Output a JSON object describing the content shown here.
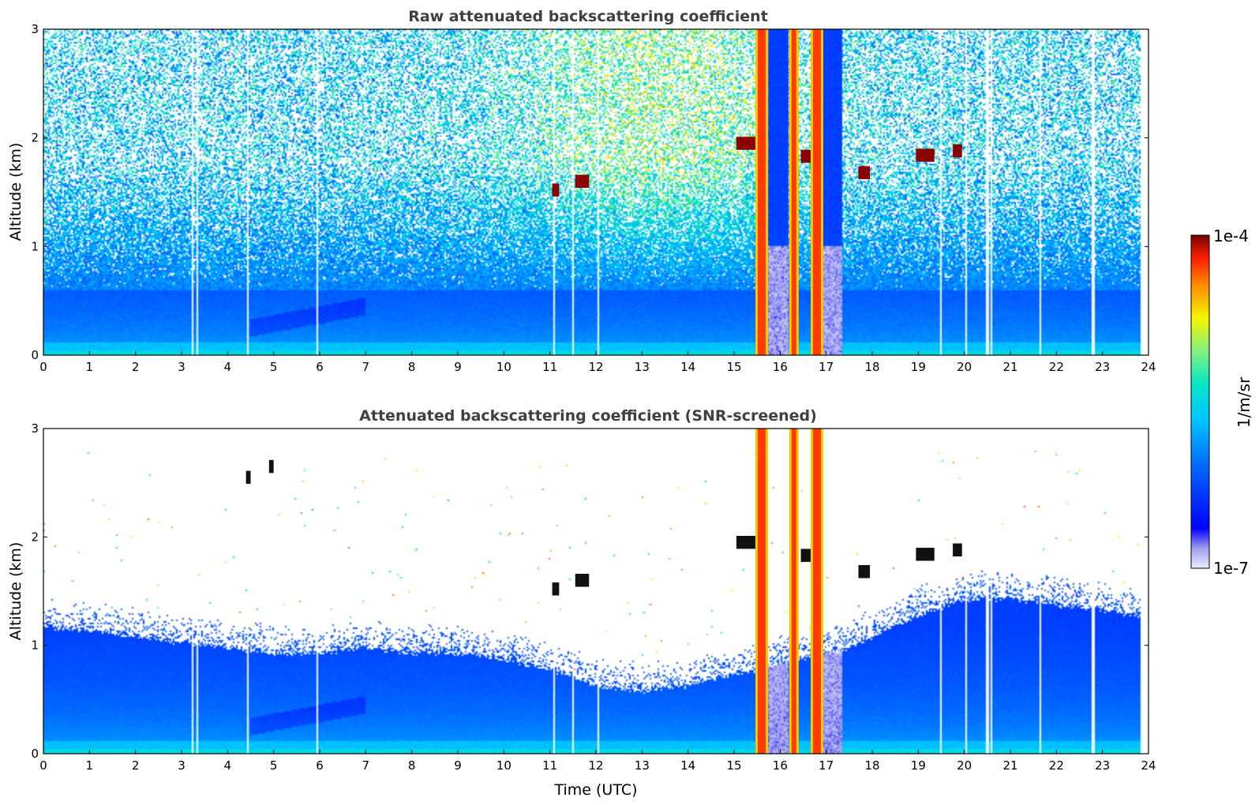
{
  "chart_data": [
    {
      "type": "heatmap",
      "title": "Raw attenuated backscattering coefficient",
      "xlabel": "",
      "ylabel": "Altitude (km)",
      "xlim": [
        0,
        24
      ],
      "ylim": [
        0,
        3
      ],
      "xticks": [
        "0",
        "1",
        "2",
        "3",
        "4",
        "5",
        "6",
        "7",
        "8",
        "9",
        "10",
        "11",
        "12",
        "13",
        "14",
        "15",
        "16",
        "17",
        "18",
        "19",
        "20",
        "21",
        "22",
        "23",
        "24"
      ],
      "yticks": [
        "0",
        "1",
        "2",
        "3"
      ],
      "cloud_layers": [
        {
          "t_start": 11.05,
          "t_end": 11.2,
          "alt_km": 1.52
        },
        {
          "t_start": 11.55,
          "t_end": 11.85,
          "alt_km": 1.6
        },
        {
          "t_start": 15.05,
          "t_end": 15.55,
          "alt_km": 1.95
        },
        {
          "t_start": 16.45,
          "t_end": 16.75,
          "alt_km": 1.83
        },
        {
          "t_start": 17.7,
          "t_end": 17.95,
          "alt_km": 1.68
        },
        {
          "t_start": 18.95,
          "t_end": 19.35,
          "alt_km": 1.84
        },
        {
          "t_start": 19.75,
          "t_end": 19.95,
          "alt_km": 1.88
        }
      ],
      "precipitation_columns": [
        15.6,
        16.3,
        16.8
      ],
      "low_signal_gaps": [
        {
          "t_start": 15.75,
          "t_end": 16.2
        },
        {
          "t_start": 16.9,
          "t_end": 17.35
        }
      ]
    },
    {
      "type": "heatmap",
      "title": "Attenuated backscattering coefficient (SNR-screened)",
      "xlabel": "Time (UTC)",
      "ylabel": "Altitude (km)",
      "xlim": [
        0,
        24
      ],
      "ylim": [
        0,
        3
      ],
      "xticks": [
        "0",
        "1",
        "2",
        "3",
        "4",
        "5",
        "6",
        "7",
        "8",
        "9",
        "10",
        "11",
        "12",
        "13",
        "14",
        "15",
        "16",
        "17",
        "18",
        "19",
        "20",
        "21",
        "22",
        "23",
        "24"
      ],
      "yticks": [
        "0",
        "1",
        "2",
        "3"
      ],
      "snr_boundary": {
        "t": [
          0,
          1,
          2,
          3,
          4,
          5,
          6,
          7,
          8,
          9,
          10,
          11,
          12,
          13,
          14,
          15,
          15.5,
          17.5,
          18,
          19,
          20,
          21,
          22,
          23,
          23.8
        ],
        "alt_km": [
          1.2,
          1.15,
          1.1,
          1.05,
          1.0,
          0.95,
          0.95,
          1.0,
          0.95,
          0.95,
          0.9,
          0.8,
          0.65,
          0.6,
          0.65,
          0.75,
          0.8,
          1.0,
          1.1,
          1.3,
          1.45,
          1.45,
          1.4,
          1.35,
          1.3
        ]
      },
      "cloud_layers": [
        {
          "t_start": 4.4,
          "t_end": 4.5,
          "alt_km": 2.55
        },
        {
          "t_start": 4.9,
          "t_end": 5.0,
          "alt_km": 2.65
        },
        {
          "t_start": 11.05,
          "t_end": 11.2,
          "alt_km": 1.52
        },
        {
          "t_start": 11.55,
          "t_end": 11.85,
          "alt_km": 1.6
        },
        {
          "t_start": 15.05,
          "t_end": 15.55,
          "alt_km": 1.95
        },
        {
          "t_start": 16.45,
          "t_end": 16.75,
          "alt_km": 1.83
        },
        {
          "t_start": 17.7,
          "t_end": 17.95,
          "alt_km": 1.68
        },
        {
          "t_start": 18.95,
          "t_end": 19.35,
          "alt_km": 1.84
        },
        {
          "t_start": 19.75,
          "t_end": 19.95,
          "alt_km": 1.88
        }
      ],
      "precipitation_columns": [
        15.6,
        16.3,
        16.8
      ]
    }
  ],
  "colorbar": {
    "label": "1/m/sr",
    "min_label": "1e-7",
    "max_label": "1e-4",
    "scale": "log",
    "colormap": "jet"
  }
}
